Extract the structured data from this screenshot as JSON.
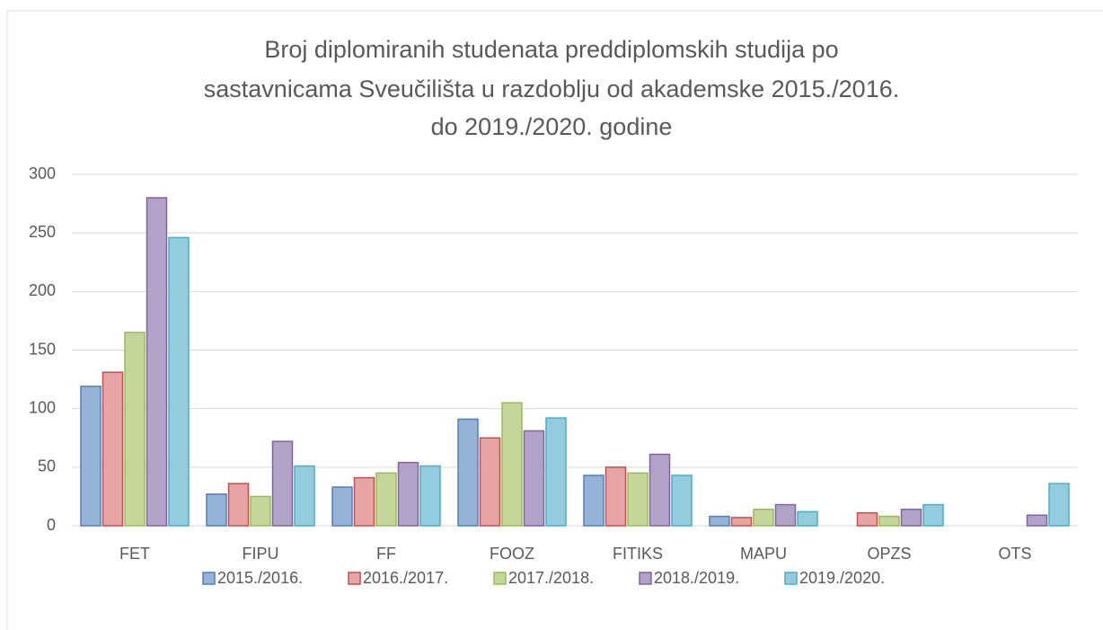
{
  "chart_data": {
    "type": "bar",
    "title": [
      "Broj diplomiranih studenata preddiplomskih studija po",
      "sastavnicama Sveučilišta u razdoblju od akademske 2015./2016.",
      "do 2019./2020. godine"
    ],
    "categories": [
      "FET",
      "FIPU",
      "FF",
      "FOOZ",
      "FITIKS",
      "MAPU",
      "OPZS",
      "OTS"
    ],
    "series": [
      {
        "name": "2015./2016.",
        "color": "#95b3d7",
        "edge": "#4f81bd",
        "values": [
          119,
          27,
          33,
          91,
          43,
          8,
          null,
          null
        ]
      },
      {
        "name": "2016./2017.",
        "color": "#e6a5a4",
        "edge": "#c0504d",
        "values": [
          131,
          36,
          41,
          75,
          50,
          7,
          11,
          null
        ]
      },
      {
        "name": "2017./2018.",
        "color": "#c4d79b",
        "edge": "#9bbb59",
        "values": [
          165,
          25,
          45,
          105,
          45,
          14,
          8,
          null
        ]
      },
      {
        "name": "2018./2019.",
        "color": "#b3a2c7",
        "edge": "#8064a2",
        "values": [
          280,
          72,
          54,
          81,
          61,
          18,
          14,
          9
        ]
      },
      {
        "name": "2019./2020.",
        "color": "#93cddd",
        "edge": "#4bacc6",
        "values": [
          246,
          51,
          51,
          92,
          43,
          12,
          18,
          36
        ]
      }
    ],
    "ylim": [
      0,
      300
    ],
    "yticks": [
      0,
      50,
      100,
      150,
      200,
      250,
      300
    ],
    "grid": true,
    "legend": "bottom"
  }
}
